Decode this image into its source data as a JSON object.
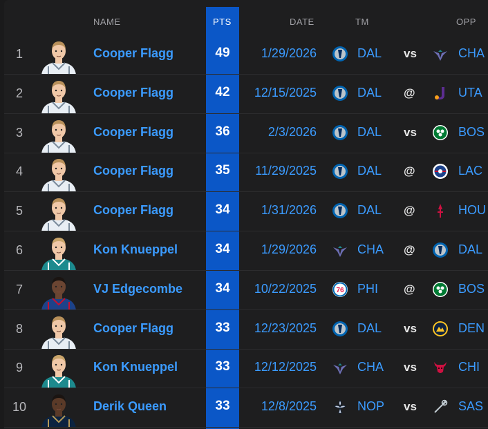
{
  "headers": {
    "name": "NAME",
    "pts": "PTS",
    "date": "DATE",
    "tm": "TM",
    "opp": "OPP"
  },
  "colors": {
    "accent": "#0b57c7",
    "link": "#3b9bff"
  },
  "rows": [
    {
      "rank": "1",
      "name": "Cooper Flagg",
      "pts": "49",
      "date": "1/29/2026",
      "tm": "DAL",
      "loc": "vs",
      "opp": "CHA",
      "tm_logo": "mavericks-logo",
      "opp_logo": "hornets-logo",
      "avatar": "cooper-flagg"
    },
    {
      "rank": "2",
      "name": "Cooper Flagg",
      "pts": "42",
      "date": "12/15/2025",
      "tm": "DAL",
      "loc": "@",
      "opp": "UTA",
      "tm_logo": "mavericks-logo",
      "opp_logo": "jazz-logo",
      "avatar": "cooper-flagg"
    },
    {
      "rank": "3",
      "name": "Cooper Flagg",
      "pts": "36",
      "date": "2/3/2026",
      "tm": "DAL",
      "loc": "vs",
      "opp": "BOS",
      "tm_logo": "mavericks-logo",
      "opp_logo": "celtics-logo",
      "avatar": "cooper-flagg"
    },
    {
      "rank": "4",
      "name": "Cooper Flagg",
      "pts": "35",
      "date": "11/29/2025",
      "tm": "DAL",
      "loc": "@",
      "opp": "LAC",
      "tm_logo": "mavericks-logo",
      "opp_logo": "clippers-logo",
      "avatar": "cooper-flagg"
    },
    {
      "rank": "5",
      "name": "Cooper Flagg",
      "pts": "34",
      "date": "1/31/2026",
      "tm": "DAL",
      "loc": "@",
      "opp": "HOU",
      "tm_logo": "mavericks-logo",
      "opp_logo": "rockets-logo",
      "avatar": "cooper-flagg"
    },
    {
      "rank": "6",
      "name": "Kon Knueppel",
      "pts": "34",
      "date": "1/29/2026",
      "tm": "CHA",
      "loc": "@",
      "opp": "DAL",
      "tm_logo": "hornets-logo",
      "opp_logo": "mavericks-logo",
      "avatar": "kon-knueppel"
    },
    {
      "rank": "7",
      "name": "VJ Edgecombe",
      "pts": "34",
      "date": "10/22/2025",
      "tm": "PHI",
      "loc": "@",
      "opp": "BOS",
      "tm_logo": "76ers-logo",
      "opp_logo": "celtics-logo",
      "avatar": "vj-edgecombe"
    },
    {
      "rank": "8",
      "name": "Cooper Flagg",
      "pts": "33",
      "date": "12/23/2025",
      "tm": "DAL",
      "loc": "vs",
      "opp": "DEN",
      "tm_logo": "mavericks-logo",
      "opp_logo": "nuggets-logo",
      "avatar": "cooper-flagg"
    },
    {
      "rank": "9",
      "name": "Kon Knueppel",
      "pts": "33",
      "date": "12/12/2025",
      "tm": "CHA",
      "loc": "vs",
      "opp": "CHI",
      "tm_logo": "hornets-logo",
      "opp_logo": "bulls-logo",
      "avatar": "kon-knueppel"
    },
    {
      "rank": "10",
      "name": "Derik Queen",
      "pts": "33",
      "date": "12/8/2025",
      "tm": "NOP",
      "loc": "vs",
      "opp": "SAS",
      "tm_logo": "pelicans-logo",
      "opp_logo": "spurs-logo",
      "avatar": "derik-queen"
    }
  ]
}
